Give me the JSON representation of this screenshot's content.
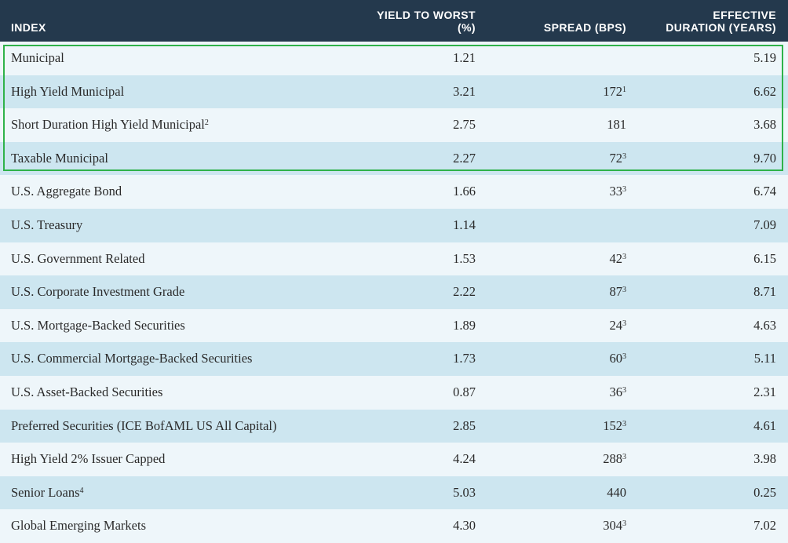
{
  "header": {
    "index": "INDEX",
    "yield_line1": "YIELD TO WORST",
    "yield_line2": "(%)",
    "spread": "SPREAD (BPS)",
    "duration_line1": "EFFECTIVE",
    "duration_line2": "DURATION (YEARS)"
  },
  "rows": [
    {
      "index": "Municipal",
      "index_sup": "",
      "yield": "1.21",
      "spread": "",
      "spread_sup": "",
      "duration": "5.19"
    },
    {
      "index": "High Yield Municipal",
      "index_sup": "",
      "yield": "3.21",
      "spread": "172",
      "spread_sup": "1",
      "duration": "6.62"
    },
    {
      "index": "Short Duration High Yield Municipal",
      "index_sup": "2",
      "yield": "2.75",
      "spread": "181",
      "spread_sup": "",
      "duration": "3.68"
    },
    {
      "index": "Taxable Municipal",
      "index_sup": "",
      "yield": "2.27",
      "spread": "72",
      "spread_sup": "3",
      "duration": "9.70"
    },
    {
      "index": "U.S. Aggregate Bond",
      "index_sup": "",
      "yield": "1.66",
      "spread": "33",
      "spread_sup": "3",
      "duration": "6.74"
    },
    {
      "index": "U.S. Treasury",
      "index_sup": "",
      "yield": "1.14",
      "spread": "",
      "spread_sup": "",
      "duration": "7.09"
    },
    {
      "index": "U.S. Government Related",
      "index_sup": "",
      "yield": "1.53",
      "spread": "42",
      "spread_sup": "3",
      "duration": "6.15"
    },
    {
      "index": "U.S. Corporate Investment Grade",
      "index_sup": "",
      "yield": "2.22",
      "spread": "87",
      "spread_sup": "3",
      "duration": "8.71"
    },
    {
      "index": "U.S. Mortgage-Backed Securities",
      "index_sup": "",
      "yield": "1.89",
      "spread": "24",
      "spread_sup": "3",
      "duration": "4.63"
    },
    {
      "index": "U.S. Commercial Mortgage-Backed Securities",
      "index_sup": "",
      "yield": "1.73",
      "spread": "60",
      "spread_sup": "3",
      "duration": "5.11"
    },
    {
      "index": "U.S. Asset-Backed Securities",
      "index_sup": "",
      "yield": "0.87",
      "spread": "36",
      "spread_sup": "3",
      "duration": "2.31"
    },
    {
      "index": "Preferred Securities (ICE BofAML US All Capital)",
      "index_sup": "",
      "yield": "2.85",
      "spread": "152",
      "spread_sup": "3",
      "duration": "4.61"
    },
    {
      "index": "High Yield 2% Issuer Capped",
      "index_sup": "",
      "yield": "4.24",
      "spread": "288",
      "spread_sup": "3",
      "duration": "3.98"
    },
    {
      "index": "Senior Loans",
      "index_sup": "4",
      "yield": "5.03",
      "spread": "440",
      "spread_sup": "",
      "duration": "0.25"
    },
    {
      "index": "Global Emerging Markets",
      "index_sup": "",
      "yield": "4.30",
      "spread": "304",
      "spread_sup": "3",
      "duration": "7.02"
    }
  ],
  "colors": {
    "header_bg": "#24394d",
    "row_light": "#eef6fa",
    "row_dark": "#cde6f0",
    "highlight_border": "#2fb24a"
  }
}
